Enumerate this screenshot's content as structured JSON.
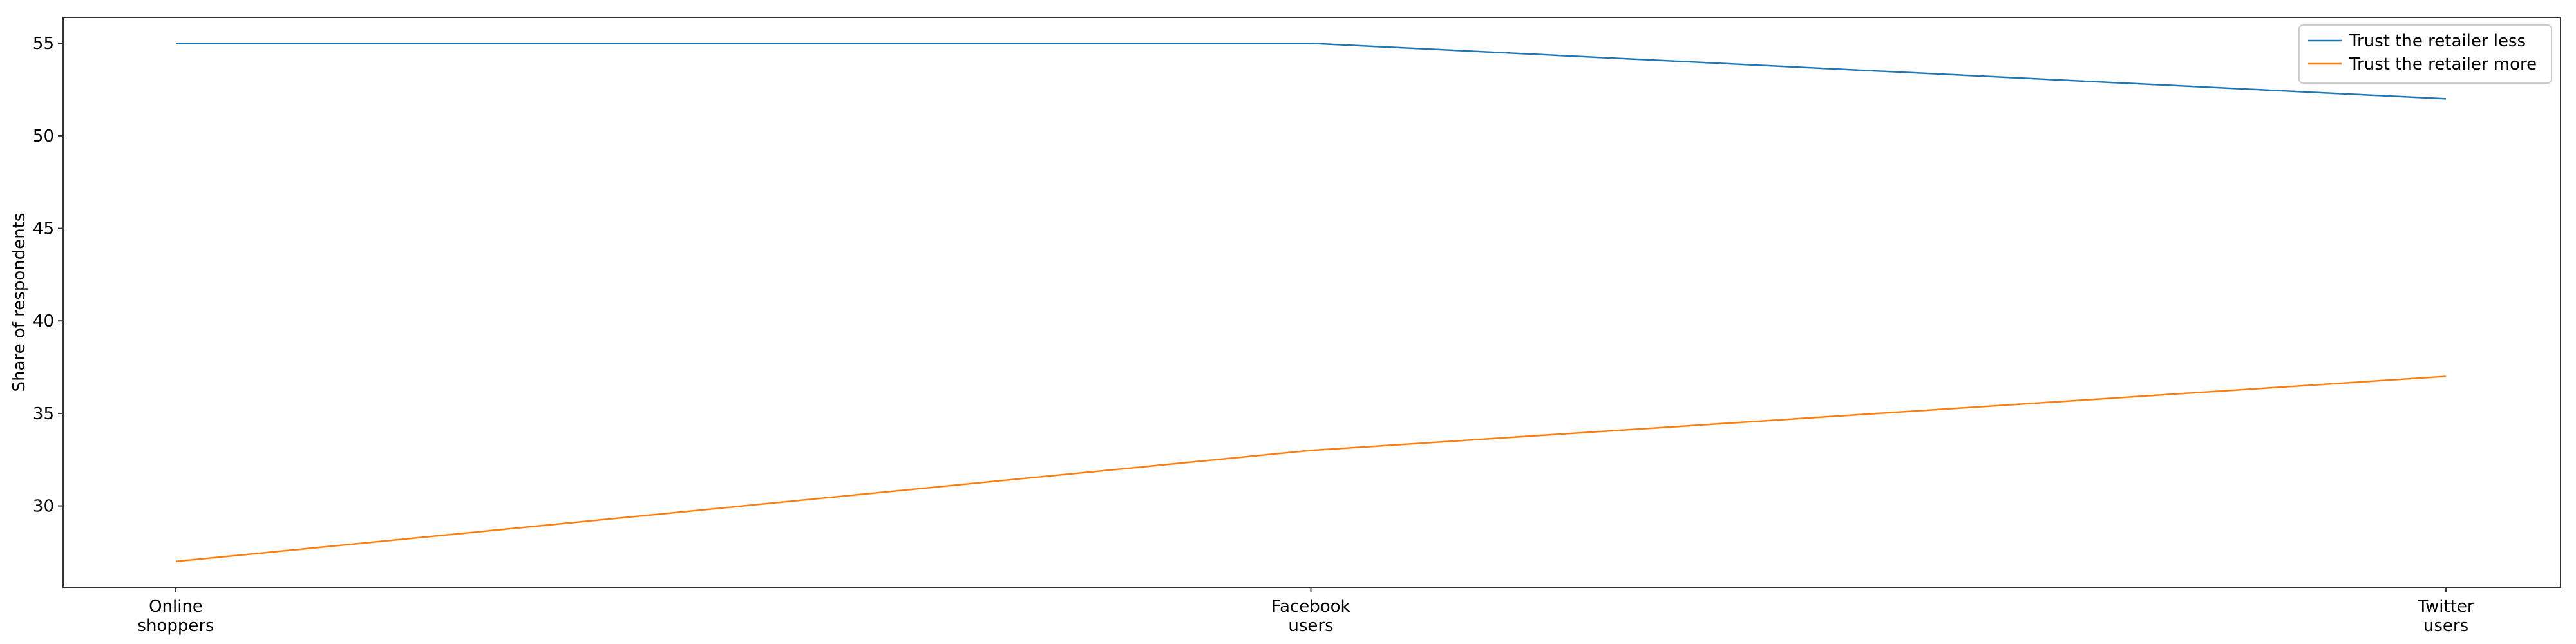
{
  "chart_data": {
    "type": "line",
    "categories": [
      [
        "Online",
        "shoppers"
      ],
      [
        "Facebook",
        "users"
      ],
      [
        "Twitter",
        "users"
      ]
    ],
    "series": [
      {
        "name": "Trust the retailer less",
        "values": [
          55,
          55,
          52
        ],
        "color": "#1f77b4"
      },
      {
        "name": "Trust the retailer more",
        "values": [
          27,
          33,
          37
        ],
        "color": "#ff7f0e"
      }
    ],
    "title": "",
    "xlabel": "",
    "ylabel": "Share of respondents",
    "ylim": [
      25.6,
      56.4
    ],
    "yticks": [
      30,
      35,
      40,
      45,
      50,
      55
    ],
    "grid": false,
    "legend_position": "top-right"
  }
}
